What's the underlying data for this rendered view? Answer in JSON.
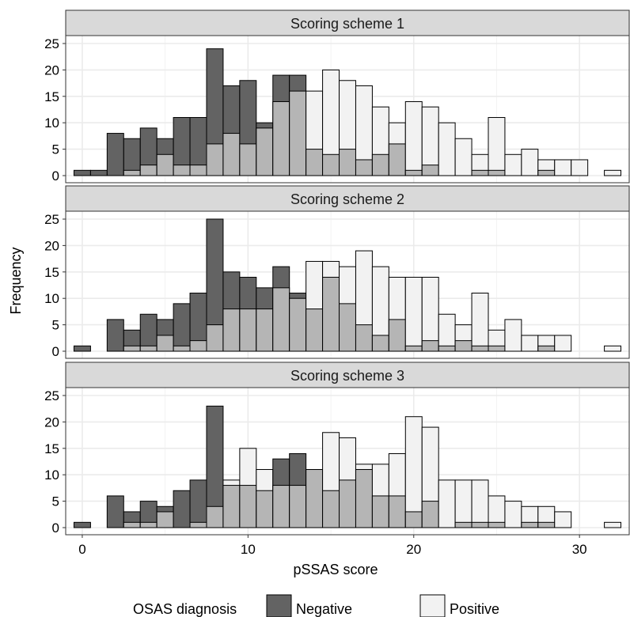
{
  "chart_data": {
    "type": "bar",
    "stacked": "overlay",
    "ylabel": "Frequency",
    "xlabel": "pSSAS score",
    "xlim": [
      -1,
      33
    ],
    "ylim": [
      0,
      25
    ],
    "x_ticks": [
      0,
      10,
      20,
      30
    ],
    "y_ticks": [
      0,
      5,
      10,
      15,
      20,
      25
    ],
    "grid": true,
    "legend": {
      "position": "bottom",
      "title": "OSAS diagnosis",
      "entries": [
        {
          "name": "Negative",
          "color": "#636363"
        },
        {
          "name": "Positive",
          "color": "#f2f2f2"
        }
      ]
    },
    "colors": {
      "overlap": "#b5b5b5",
      "panel_strip": "#d9d9d9",
      "grid": "#ebebeb"
    },
    "x": [
      0,
      1,
      2,
      3,
      4,
      5,
      6,
      7,
      8,
      9,
      10,
      11,
      12,
      13,
      14,
      15,
      16,
      17,
      18,
      19,
      20,
      21,
      22,
      23,
      24,
      25,
      26,
      27,
      28,
      29,
      30,
      31,
      32
    ],
    "panels": [
      {
        "title": "Scoring scheme 1",
        "negative": [
          1,
          1,
          8,
          7,
          9,
          7,
          11,
          11,
          24,
          17,
          18,
          10,
          19,
          19,
          5,
          4,
          5,
          3,
          4,
          6,
          1,
          2,
          0,
          0,
          1,
          1,
          0,
          0,
          1,
          0,
          0,
          0,
          0
        ],
        "positive": [
          0,
          0,
          0,
          1,
          2,
          4,
          2,
          2,
          6,
          8,
          6,
          9,
          14,
          16,
          16,
          20,
          18,
          17,
          13,
          10,
          14,
          13,
          10,
          7,
          4,
          11,
          4,
          5,
          3,
          3,
          3,
          0,
          1
        ]
      },
      {
        "title": "Scoring scheme 2",
        "negative": [
          1,
          0,
          6,
          4,
          7,
          6,
          9,
          11,
          25,
          15,
          14,
          12,
          16,
          11,
          8,
          14,
          9,
          5,
          3,
          6,
          1,
          2,
          1,
          2,
          1,
          1,
          0,
          0,
          1,
          0,
          0,
          0,
          0
        ],
        "positive": [
          0,
          0,
          0,
          1,
          1,
          3,
          1,
          2,
          5,
          8,
          8,
          8,
          12,
          10,
          17,
          17,
          16,
          19,
          16,
          14,
          14,
          14,
          7,
          5,
          11,
          4,
          6,
          3,
          3,
          3,
          0,
          0,
          1
        ]
      },
      {
        "title": "Scoring scheme 3",
        "negative": [
          1,
          0,
          6,
          3,
          5,
          4,
          7,
          9,
          23,
          8,
          8,
          7,
          13,
          14,
          11,
          7,
          9,
          11,
          6,
          6,
          3,
          5,
          0,
          1,
          1,
          1,
          0,
          1,
          1,
          0,
          0,
          0,
          0
        ],
        "positive": [
          0,
          0,
          0,
          1,
          1,
          3,
          0,
          1,
          4,
          9,
          15,
          11,
          8,
          8,
          11,
          18,
          17,
          12,
          12,
          14,
          21,
          19,
          9,
          9,
          9,
          6,
          5,
          4,
          4,
          3,
          0,
          0,
          1
        ]
      }
    ]
  }
}
